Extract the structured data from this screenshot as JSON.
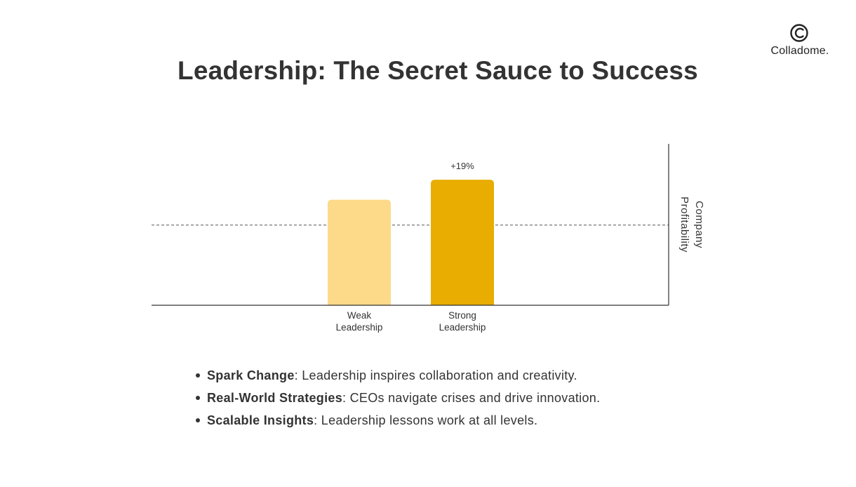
{
  "title": "Leadership: The Secret Sauce to Success",
  "logo": {
    "text": "Colladome.",
    "icon": "colladome-logo-icon"
  },
  "chart_data": {
    "type": "bar",
    "categories": [
      [
        "Weak",
        "Leadership"
      ],
      [
        "Strong",
        "Leadership"
      ]
    ],
    "values": [
      100,
      119
    ],
    "ylim": [
      0,
      153
    ],
    "ylabel": [
      "Company",
      "Profitability"
    ],
    "annotations": [
      "",
      "+19%"
    ],
    "reference_line": {
      "value": 76,
      "style": "dashed"
    },
    "colors": [
      "#FDDA8A",
      "#E8AD00"
    ],
    "grid": false,
    "axis_position": "right"
  },
  "bullets": [
    {
      "term": "Spark Change",
      "text": ": Leadership inspires collaboration and creativity."
    },
    {
      "term": "Real-World Strategies",
      "text": ": CEOs navigate crises and drive innovation."
    },
    {
      "term": "Scalable Insights",
      "text": ": Leadership lessons work at all levels."
    }
  ]
}
